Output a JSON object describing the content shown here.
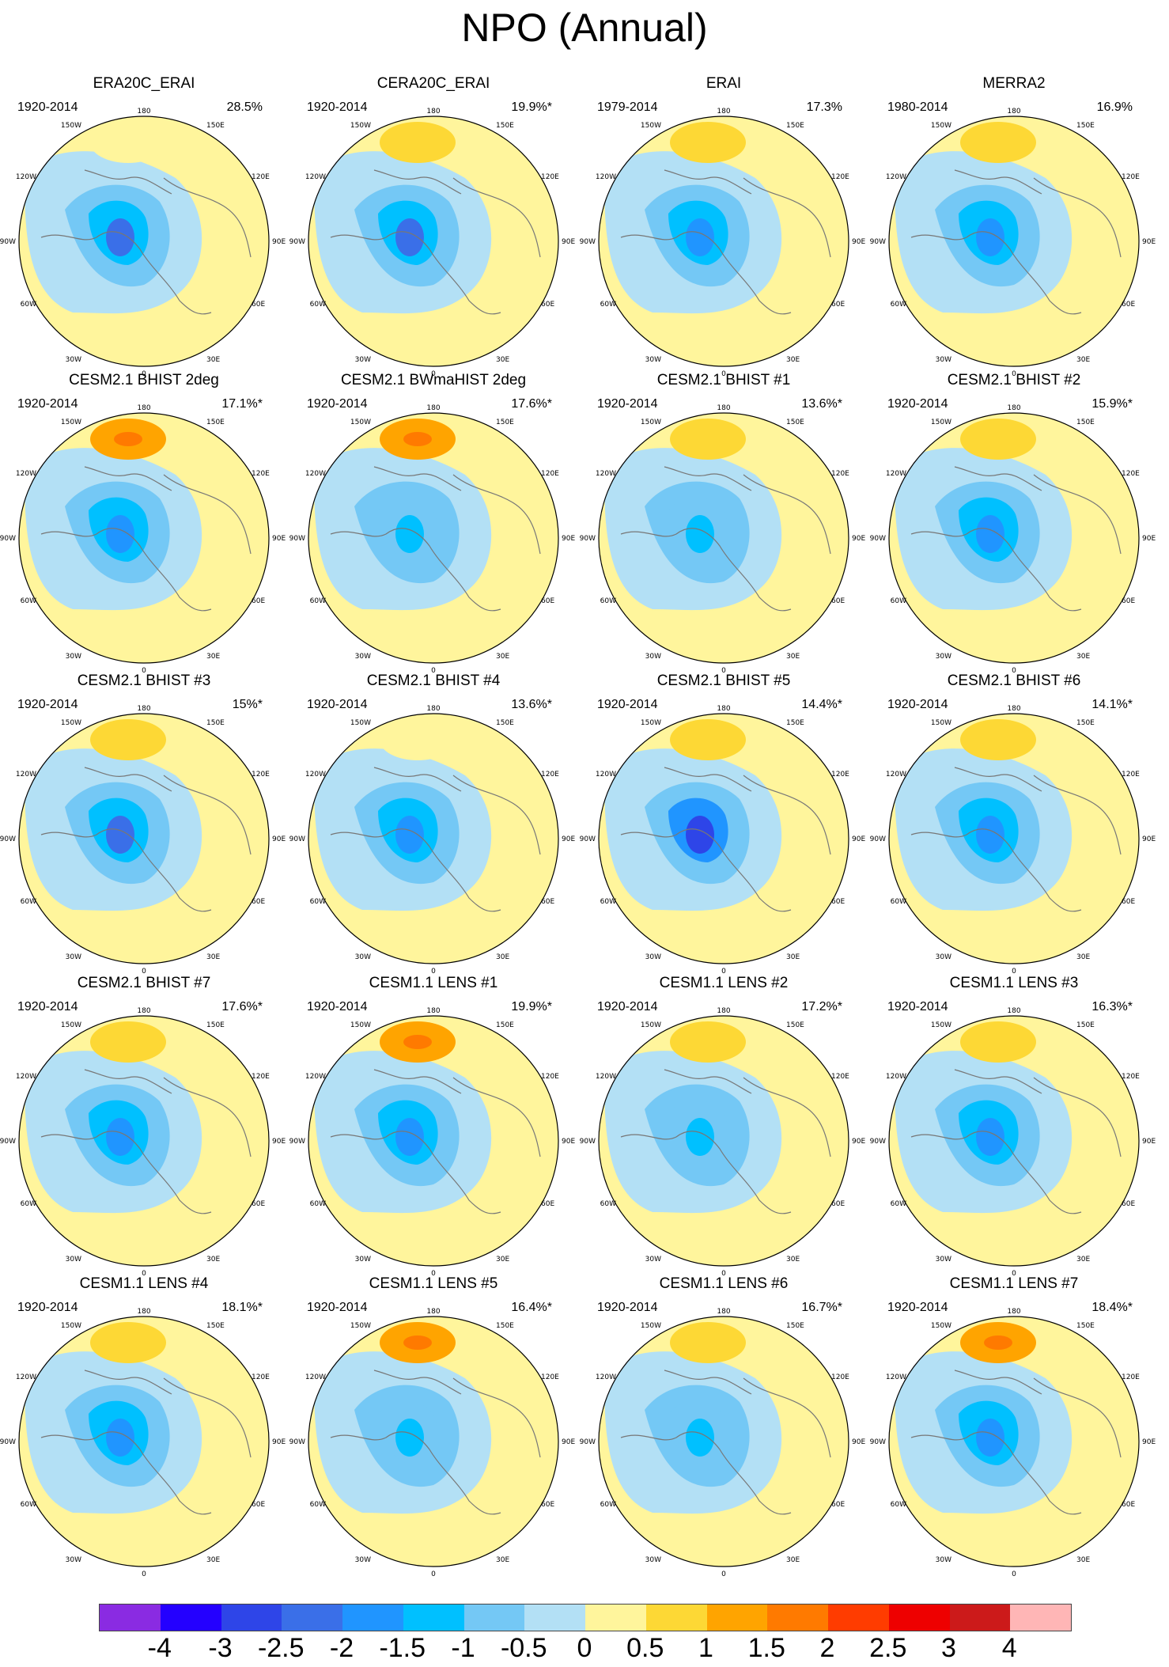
{
  "title": "NPO (Annual)",
  "colors": {
    "n4": "#8a2be2",
    "n3": "#2400ff",
    "n25": "#2e45e8",
    "n2": "#3a6fe8",
    "n15": "#2095ff",
    "n1": "#00c0ff",
    "n05": "#74c8f5",
    "n0": "#b3e0f5",
    "p0": "#fff59c",
    "p05": "#fdd835",
    "p1": "#ffa400",
    "p15": "#ff7a00",
    "p2": "#ff3c00",
    "p25": "#ee0000",
    "p3": "#cc1a1a",
    "p4": "#ffb6b6"
  },
  "axis_labels": {
    "top": "180",
    "bottom": "0",
    "left": "90W",
    "right": "90E",
    "ul1": "150W",
    "ur1": "150E",
    "ul2": "120W",
    "ur2": "120E",
    "ll1": "60W",
    "lr1": "60E",
    "ll2": "30W",
    "lr2": "30E"
  },
  "chart_data": {
    "type": "heatmap",
    "title": "NPO (Annual)",
    "colorbar": {
      "labels": [
        "-4",
        "-3",
        "-2.5",
        "-2",
        "-1.5",
        "-1",
        "-0.5",
        "0",
        "0.5",
        "1",
        "1.5",
        "2",
        "2.5",
        "3",
        "4"
      ],
      "colors": [
        "#8a2be2",
        "#2400ff",
        "#2e45e8",
        "#3a6fe8",
        "#2095ff",
        "#00c0ff",
        "#74c8f5",
        "#b3e0f5",
        "#fff59c",
        "#fdd835",
        "#ffa400",
        "#ff7a00",
        "#ff3c00",
        "#ee0000",
        "#cc1a1a",
        "#ffb6b6"
      ]
    },
    "panels": [
      {
        "name": "ERA20C_ERAI",
        "years": "1920-2014",
        "variance": "28.5%",
        "max_pos": 0.5,
        "min_neg": -2.0
      },
      {
        "name": "CERA20C_ERAI",
        "years": "1920-2014",
        "variance": "19.9%*",
        "max_pos": 1.0,
        "min_neg": -2.0
      },
      {
        "name": "ERAI",
        "years": "1979-2014",
        "variance": "17.3%",
        "max_pos": 1.0,
        "min_neg": -1.5
      },
      {
        "name": "MERRA2",
        "years": "1980-2014",
        "variance": "16.9%",
        "max_pos": 1.0,
        "min_neg": -1.5
      },
      {
        "name": "CESM2.1 BHIST 2deg",
        "years": "1920-2014",
        "variance": "17.1%*",
        "max_pos": 1.5,
        "min_neg": -1.5
      },
      {
        "name": "CESM2.1 BWmaHIST 2deg",
        "years": "1920-2014",
        "variance": "17.6%*",
        "max_pos": 1.5,
        "min_neg": -1.0
      },
      {
        "name": "CESM2.1 BHIST #1",
        "years": "1920-2014",
        "variance": "13.6%*",
        "max_pos": 1.0,
        "min_neg": -1.0
      },
      {
        "name": "CESM2.1 BHIST #2",
        "years": "1920-2014",
        "variance": "15.9%*",
        "max_pos": 1.0,
        "min_neg": -1.5
      },
      {
        "name": "CESM2.1 BHIST #3",
        "years": "1920-2014",
        "variance": "15%*",
        "max_pos": 1.0,
        "min_neg": -2.0
      },
      {
        "name": "CESM2.1 BHIST #4",
        "years": "1920-2014",
        "variance": "13.6%*",
        "max_pos": 0.5,
        "min_neg": -1.5
      },
      {
        "name": "CESM2.1 BHIST #5",
        "years": "1920-2014",
        "variance": "14.4%*",
        "max_pos": 1.0,
        "min_neg": -2.5
      },
      {
        "name": "CESM2.1 BHIST #6",
        "years": "1920-2014",
        "variance": "14.1%*",
        "max_pos": 1.0,
        "min_neg": -1.5
      },
      {
        "name": "CESM2.1 BHIST #7",
        "years": "1920-2014",
        "variance": "17.6%*",
        "max_pos": 1.0,
        "min_neg": -1.5
      },
      {
        "name": "CESM1.1 LENS #1",
        "years": "1920-2014",
        "variance": "19.9%*",
        "max_pos": 1.5,
        "min_neg": -1.5
      },
      {
        "name": "CESM1.1 LENS #2",
        "years": "1920-2014",
        "variance": "17.2%*",
        "max_pos": 1.0,
        "min_neg": -1.0
      },
      {
        "name": "CESM1.1 LENS #3",
        "years": "1920-2014",
        "variance": "16.3%*",
        "max_pos": 1.0,
        "min_neg": -1.5
      },
      {
        "name": "CESM1.1 LENS #4",
        "years": "1920-2014",
        "variance": "18.1%*",
        "max_pos": 1.0,
        "min_neg": -1.5
      },
      {
        "name": "CESM1.1 LENS #5",
        "years": "1920-2014",
        "variance": "16.4%*",
        "max_pos": 1.5,
        "min_neg": -1.0
      },
      {
        "name": "CESM1.1 LENS #6",
        "years": "1920-2014",
        "variance": "16.7%*",
        "max_pos": 1.0,
        "min_neg": -1.0
      },
      {
        "name": "CESM1.1 LENS #7",
        "years": "1920-2014",
        "variance": "18.4%*",
        "max_pos": 1.5,
        "min_neg": -1.5
      }
    ]
  }
}
